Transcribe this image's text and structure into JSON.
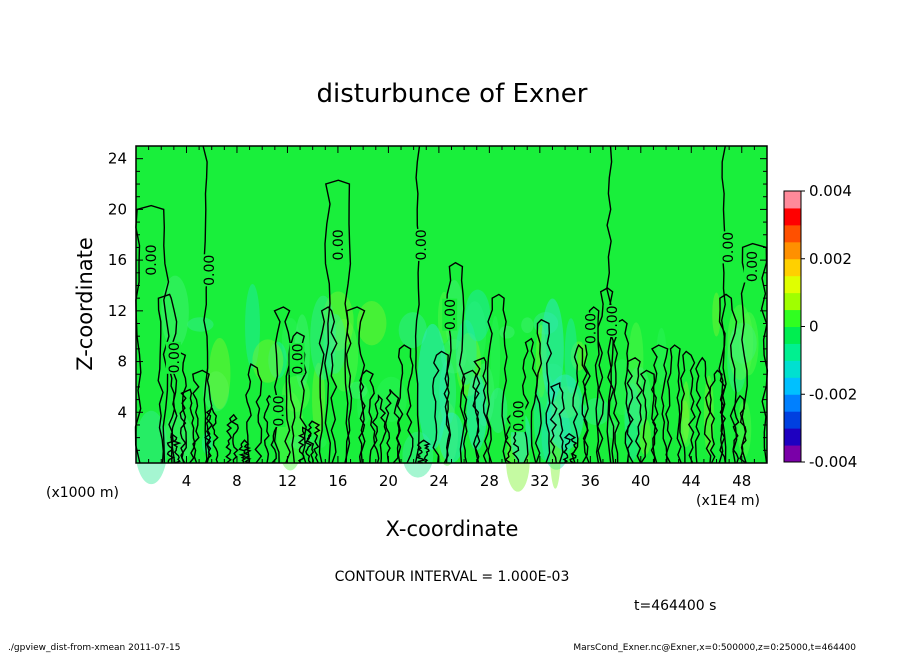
{
  "chart_data": {
    "type": "contour",
    "title": "disturbunce of Exner",
    "xlabel": "X-coordinate",
    "ylabel": "Z-coordinate",
    "x_unit": "(x1E4 m)",
    "y_unit": "(x1000 m)",
    "xlim": [
      0,
      50
    ],
    "ylim": [
      0,
      25
    ],
    "x_ticks": [
      4,
      8,
      12,
      16,
      20,
      24,
      28,
      32,
      36,
      40,
      44,
      48
    ],
    "y_ticks": [
      4,
      8,
      12,
      16,
      20,
      24
    ],
    "contour_interval_text": "CONTOUR INTERVAL = 1.000E-03",
    "time_text": "t=464400 s",
    "colorbar": {
      "min": -0.004,
      "max": 0.004,
      "tick_labels": [
        "0.004",
        "0.002",
        "0",
        "-0.002",
        "-0.004"
      ],
      "tick_values": [
        0.004,
        0.002,
        0,
        -0.002,
        -0.004
      ],
      "colors": [
        "#7a00a8",
        "#1e00c0",
        "#0040e0",
        "#0080ff",
        "#00c0ff",
        "#00e0d0",
        "#00f090",
        "#00ee50",
        "#30ff20",
        "#a0ff00",
        "#e0ff00",
        "#ffd000",
        "#ff9000",
        "#ff5000",
        "#ff0000",
        "#ff8a9a"
      ]
    },
    "background_color": "#19ef3b",
    "contour_labels": [
      {
        "text": "0.00",
        "x": 1.2,
        "z": 16.0
      },
      {
        "text": "0.00",
        "x": 5.8,
        "z": 15.2
      },
      {
        "text": "0.00",
        "x": 3.0,
        "z": 8.3
      },
      {
        "text": "0.00",
        "x": 12.8,
        "z": 8.2
      },
      {
        "text": "0.00",
        "x": 11.3,
        "z": 4.1
      },
      {
        "text": "0.00",
        "x": 16.0,
        "z": 17.2
      },
      {
        "text": "0.00",
        "x": 22.6,
        "z": 17.2
      },
      {
        "text": "0.00",
        "x": 24.9,
        "z": 11.7
      },
      {
        "text": "0.00",
        "x": 30.3,
        "z": 3.7
      },
      {
        "text": "0.00",
        "x": 36.0,
        "z": 10.6
      },
      {
        "text": "0.00",
        "x": 37.7,
        "z": 11.2
      },
      {
        "text": "0.00",
        "x": 46.9,
        "z": 17.0
      },
      {
        "text": "0.00",
        "x": 48.8,
        "z": 15.5
      }
    ]
  },
  "footer": {
    "left": "./gpview_dist-from-xmean  2011-07-15",
    "right": "MarsCond_Exner.nc@Exner,x=0:500000,z=0:25000,t=464400"
  }
}
